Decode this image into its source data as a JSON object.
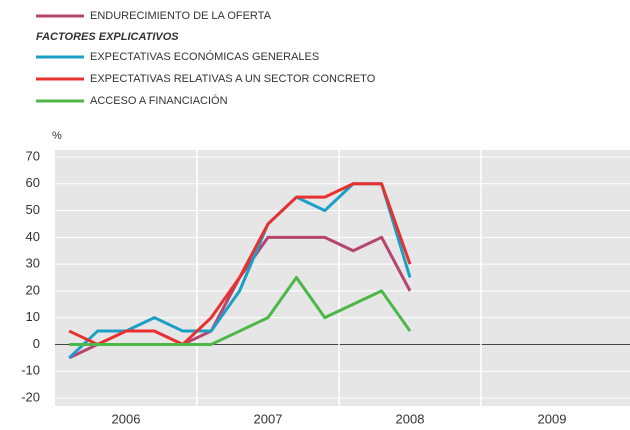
{
  "chart_data": {
    "type": "line",
    "legend_heading": "FACTORES EXPLICATIVOS",
    "ylabel": "%",
    "year_labels": [
      "2006",
      "2007",
      "2008",
      "2009"
    ],
    "ylim": [
      -20,
      70
    ],
    "yticks": [
      -20,
      -10,
      0,
      10,
      20,
      30,
      40,
      50,
      60,
      70
    ],
    "grid": true,
    "series": [
      {
        "name": "ENDURECIMIENTO DE LA OFERTA",
        "color": "#b5446e",
        "values": [
          -5,
          0,
          5,
          5,
          0,
          5,
          25,
          40,
          40,
          40,
          35,
          40,
          20
        ]
      },
      {
        "name": "EXPECTATIVAS ECONÓMICAS GENERALES",
        "color": "#1aa0c8",
        "values": [
          -5,
          5,
          5,
          10,
          5,
          5,
          20,
          45,
          55,
          50,
          60,
          60,
          25
        ]
      },
      {
        "name": "EXPECTATIVAS RELATIVAS A UN SECTOR CONCRETO",
        "color": "#e8312f",
        "values": [
          5,
          0,
          5,
          5,
          0,
          10,
          25,
          45,
          55,
          55,
          60,
          60,
          30
        ]
      },
      {
        "name": "ACCESO A FINANCIACIÓN",
        "color": "#4cb848",
        "values": [
          0,
          0,
          0,
          0,
          0,
          0,
          5,
          10,
          25,
          10,
          15,
          20,
          5
        ]
      }
    ]
  }
}
